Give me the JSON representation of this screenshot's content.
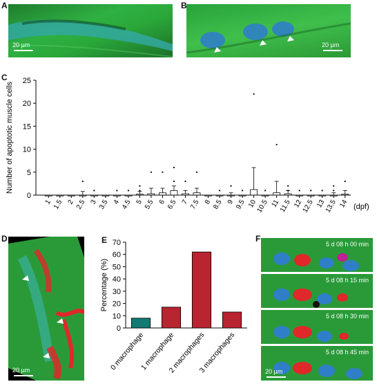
{
  "panels": {
    "a": {
      "letter": "A",
      "scale": "20 µm"
    },
    "b": {
      "letter": "B",
      "scale": "20 µm"
    },
    "c": {
      "letter": "C"
    },
    "d": {
      "letter": "D",
      "scale": "20 µm"
    },
    "e": {
      "letter": "E"
    },
    "f": {
      "letter": "F",
      "scale": "20 µm",
      "timestamps": [
        "5 d 08 h 00 min",
        "5 d 08 h 15 min",
        "5 d 08 h 30 min",
        "5 d 08 h 45 min"
      ]
    }
  },
  "colors": {
    "muscle_green": "#2aa83a",
    "nucleus_blue": "#2f7fc8",
    "macrophage_red": "#e0282a",
    "bar_teal": "#127a72",
    "bar_red": "#b82430"
  },
  "chart_data": [
    {
      "type": "box",
      "ylabel": "Number of apoptotic muscle cells",
      "xlabel_unit": "(dpf)",
      "ylim": [
        0,
        25
      ],
      "yticks": [
        0,
        5,
        10,
        15,
        20,
        25
      ],
      "categories": [
        "1",
        "1.5",
        "2",
        "2.5",
        "3",
        "3.5",
        "4",
        "4.5",
        "5",
        "5.5",
        "6",
        "6.5",
        "7",
        "7.5",
        "8",
        "8.5",
        "9",
        "9.5",
        "10",
        "10.5",
        "11",
        "11.5",
        "12",
        "12.5",
        "13",
        "13.5",
        "14"
      ],
      "boxes": [
        {
          "q1": 0,
          "median": 0,
          "q3": 0,
          "whisker_high": 0,
          "outliers": []
        },
        {
          "q1": 0,
          "median": 0,
          "q3": 0,
          "whisker_high": 0,
          "outliers": []
        },
        {
          "q1": 0,
          "median": 0,
          "q3": 0,
          "whisker_high": 0,
          "outliers": []
        },
        {
          "q1": 0,
          "median": 0,
          "q3": 0,
          "whisker_high": 0.8,
          "outliers": [
            3
          ]
        },
        {
          "q1": 0,
          "median": 0,
          "q3": 0,
          "whisker_high": 0,
          "outliers": [
            1
          ]
        },
        {
          "q1": 0,
          "median": 0,
          "q3": 0,
          "whisker_high": 0,
          "outliers": []
        },
        {
          "q1": 0,
          "median": 0,
          "q3": 0,
          "whisker_high": 0,
          "outliers": [
            1
          ]
        },
        {
          "q1": 0,
          "median": 0,
          "q3": 0,
          "whisker_high": 0,
          "outliers": [
            1
          ]
        },
        {
          "q1": 0,
          "median": 0,
          "q3": 0.2,
          "whisker_high": 0.8,
          "outliers": [
            1,
            2
          ]
        },
        {
          "q1": 0,
          "median": 0,
          "q3": 0.3,
          "whisker_high": 1.5,
          "outliers": [
            5
          ]
        },
        {
          "q1": 0,
          "median": 0,
          "q3": 0.5,
          "whisker_high": 1.5,
          "outliers": [
            5
          ]
        },
        {
          "q1": 0,
          "median": 0,
          "q3": 1,
          "whisker_high": 2,
          "outliers": [
            3,
            6
          ]
        },
        {
          "q1": 0,
          "median": 0,
          "q3": 0.3,
          "whisker_high": 1,
          "outliers": [
            3
          ]
        },
        {
          "q1": 0,
          "median": 0,
          "q3": 0.5,
          "whisker_high": 1.5,
          "outliers": [
            5
          ]
        },
        {
          "q1": 0,
          "median": 0,
          "q3": 0,
          "whisker_high": 0,
          "outliers": []
        },
        {
          "q1": 0,
          "median": 0,
          "q3": 0,
          "whisker_high": 0,
          "outliers": [
            1
          ]
        },
        {
          "q1": 0,
          "median": 0,
          "q3": 0,
          "whisker_high": 0.5,
          "outliers": [
            2
          ]
        },
        {
          "q1": 0,
          "median": 0,
          "q3": 0,
          "whisker_high": 0,
          "outliers": [
            1
          ]
        },
        {
          "q1": 0,
          "median": 0,
          "q3": 1.2,
          "whisker_high": 6,
          "outliers": [
            22
          ]
        },
        {
          "q1": 0,
          "median": 0,
          "q3": 0,
          "whisker_high": 0,
          "outliers": [
            1
          ]
        },
        {
          "q1": 0,
          "median": 0,
          "q3": 0.5,
          "whisker_high": 3,
          "outliers": [
            11
          ]
        },
        {
          "q1": 0,
          "median": 0,
          "q3": 0.3,
          "whisker_high": 1,
          "outliers": [
            1,
            2
          ]
        },
        {
          "q1": 0,
          "median": 0,
          "q3": 0,
          "whisker_high": 0,
          "outliers": [
            1
          ]
        },
        {
          "q1": 0,
          "median": 0,
          "q3": 0,
          "whisker_high": 0,
          "outliers": [
            1
          ]
        },
        {
          "q1": 0,
          "median": 0,
          "q3": 0,
          "whisker_high": 0,
          "outliers": [
            1
          ]
        },
        {
          "q1": 0,
          "median": 0,
          "q3": 0,
          "whisker_high": 0.5,
          "outliers": [
            1,
            2
          ]
        },
        {
          "q1": 0,
          "median": 0,
          "q3": 0.2,
          "whisker_high": 1,
          "outliers": [
            3
          ]
        }
      ]
    },
    {
      "type": "bar",
      "ylabel": "Percentage (%)",
      "ylim": [
        0,
        70
      ],
      "yticks": [
        0,
        10,
        20,
        30,
        40,
        50,
        60,
        70
      ],
      "categories": [
        "0 macrophage",
        "1 macrophage",
        "2 macrophages",
        "3 macrophages"
      ],
      "values": [
        8,
        17,
        62,
        13
      ],
      "bar_colors": [
        "#127a72",
        "#b82430",
        "#b82430",
        "#b82430"
      ]
    }
  ]
}
